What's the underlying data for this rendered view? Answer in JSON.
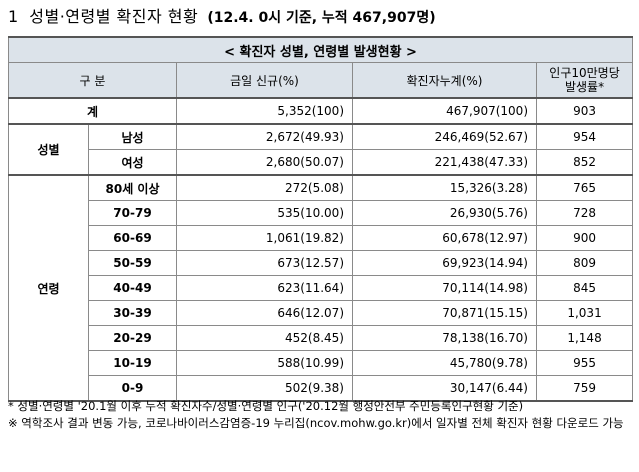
{
  "heading": {
    "number": "1",
    "title": "성별·연령별 확진자 현황",
    "date_note": "(12.4. 0시 기준, 누적 467,907명)"
  },
  "table": {
    "caption": "< 확진자 성별, 연령별 발생현황 >",
    "headers": {
      "category": "구 분",
      "new_today": "금일 신규(%)",
      "cumulative": "확진자누계(%)",
      "per100k_line1": "인구10만명당",
      "per100k_line2": "발생률*"
    },
    "total": {
      "label": "계",
      "new": "5,352(100)",
      "cumulative": "467,907(100)",
      "rate": "903"
    },
    "sex": {
      "group_label": "성별",
      "rows": [
        {
          "label": "남성",
          "new": "2,672(49.93)",
          "cumulative": "246,469(52.67)",
          "rate": "954"
        },
        {
          "label": "여성",
          "new": "2,680(50.07)",
          "cumulative": "221,438(47.33)",
          "rate": "852"
        }
      ]
    },
    "age": {
      "group_label": "연령",
      "rows": [
        {
          "label": "80세 이상",
          "new": "272(5.08)",
          "cumulative": "15,326(3.28)",
          "rate": "765"
        },
        {
          "label": "70-79",
          "new": "535(10.00)",
          "cumulative": "26,930(5.76)",
          "rate": "728"
        },
        {
          "label": "60-69",
          "new": "1,061(19.82)",
          "cumulative": "60,678(12.97)",
          "rate": "900"
        },
        {
          "label": "50-59",
          "new": "673(12.57)",
          "cumulative": "69,923(14.94)",
          "rate": "809"
        },
        {
          "label": "40-49",
          "new": "623(11.64)",
          "cumulative": "70,114(14.98)",
          "rate": "845"
        },
        {
          "label": "30-39",
          "new": "646(12.07)",
          "cumulative": "70,871(15.15)",
          "rate": "1,031"
        },
        {
          "label": "20-29",
          "new": "452(8.45)",
          "cumulative": "78,138(16.70)",
          "rate": "1,148"
        },
        {
          "label": "10-19",
          "new": "588(10.99)",
          "cumulative": "45,780(9.78)",
          "rate": "955"
        },
        {
          "label": "0-9",
          "new": "502(9.38)",
          "cumulative": "30,147(6.44)",
          "rate": "759"
        }
      ]
    }
  },
  "notes": {
    "note1": "* 성별·연령별 '20.1월 이후 누적 확진자수/성별·연령별 인구('20.12월 행정안전부 주민등록인구현황 기준)",
    "note2": "※ 역학조사 결과 변동 가능, 코로나바이러스감염증-19 누리집(ncov.mohw.go.kr)에서 일자별 전체 확진자 현황 다운로드 가능"
  }
}
